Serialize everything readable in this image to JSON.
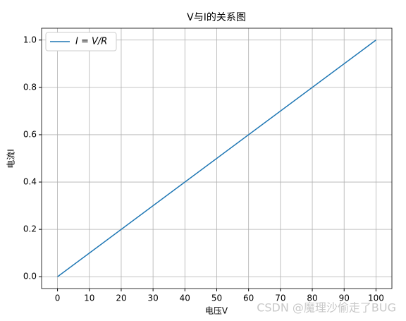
{
  "chart_data": {
    "type": "line",
    "title": "V与I的关系图",
    "x_label": "电压V",
    "y_label": "电流I",
    "x": [
      0,
      100
    ],
    "series": [
      {
        "name": "I = V/R",
        "color": "#1f77b4",
        "values": [
          0,
          1
        ]
      }
    ],
    "xlim": [
      -5,
      105
    ],
    "xticks": [
      0,
      10,
      20,
      30,
      40,
      50,
      60,
      70,
      80,
      90,
      100
    ],
    "ylim": [
      -0.05,
      1.05
    ],
    "yticks": [
      {
        "value": 0,
        "label": "0.0"
      },
      0.2,
      0.4,
      0.6,
      0.8,
      {
        "value": 1,
        "label": "1.0"
      }
    ],
    "grid": true,
    "legend": "upper left",
    "watermark": "CSDN @魔理沙偷走了BUG"
  }
}
